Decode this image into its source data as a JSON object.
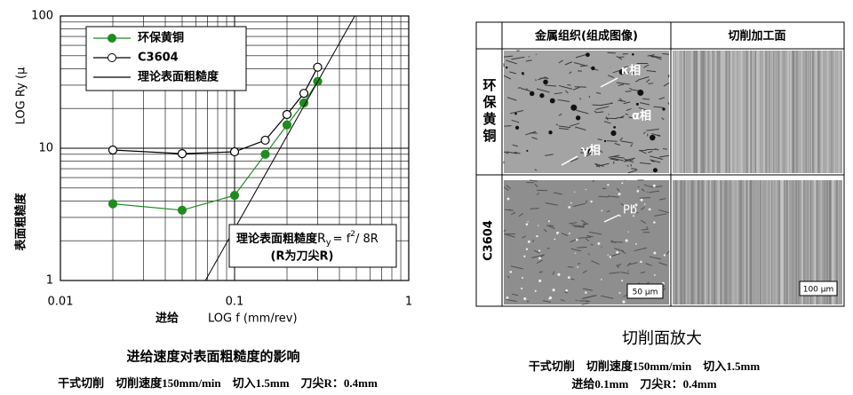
{
  "chart_data": {
    "type": "line",
    "xlabel_bold": "进给",
    "xlabel": "LOG  f (mm/rev)",
    "ylabel_bold": "表面粗糙度",
    "ylabel": "LOG  Ry  (μ",
    "log_x": true,
    "log_y": true,
    "xlim": [
      0.01,
      1
    ],
    "ylim": [
      1,
      100
    ],
    "xticks": [
      0.01,
      0.1,
      1
    ],
    "yticks": [
      1,
      10,
      100
    ],
    "grid": true,
    "minor_grid": true,
    "legend": "upper left",
    "series": [
      {
        "name": "环保黄铜",
        "color": "#1e8c1e",
        "marker": "filled",
        "x": [
          0.02,
          0.05,
          0.1,
          0.15,
          0.2,
          0.25,
          0.3
        ],
        "values": [
          3.8,
          3.4,
          4.4,
          9.0,
          15,
          22,
          32
        ]
      },
      {
        "name": "C3604",
        "color": "#000000",
        "marker": "open",
        "x": [
          0.02,
          0.05,
          0.1,
          0.15,
          0.2,
          0.25,
          0.3
        ],
        "values": [
          9.7,
          9.1,
          9.4,
          11.5,
          18,
          26,
          41
        ]
      },
      {
        "name": "理论表面粗糙度",
        "color": "#000000",
        "marker": "none",
        "x": [
          0.068,
          0.49
        ],
        "values": [
          1,
          100
        ]
      }
    ],
    "annotation": {
      "text": "理论表面粗糙度",
      "symbol": "R",
      "subscript": "y",
      "equals": "= f",
      "superscript": "2",
      "rest": "/ 8R",
      "note": "(R为刀尖R)"
    },
    "caption": "进给速度对表面粗糙度的影响",
    "conditions": "干式切削　切削速度150mm/min　切入1.5mm　刀尖R：0.4mm"
  },
  "figure": {
    "headers": [
      "金属组织(组成图像)",
      "切削加工面"
    ],
    "rows": [
      "环保黄铜",
      "C3604"
    ],
    "labels": {
      "kappa": "κ相",
      "alpha": "α相",
      "gamma": "γ相",
      "pb": "Pb"
    },
    "scale_bars": [
      "50 μm",
      "100 μm"
    ],
    "caption": "切削面放大",
    "conditions": [
      "干式切削　切削速度150mm/min　切入1.5mm",
      "进给0.1mm　刀尖R：0.4mm"
    ]
  }
}
